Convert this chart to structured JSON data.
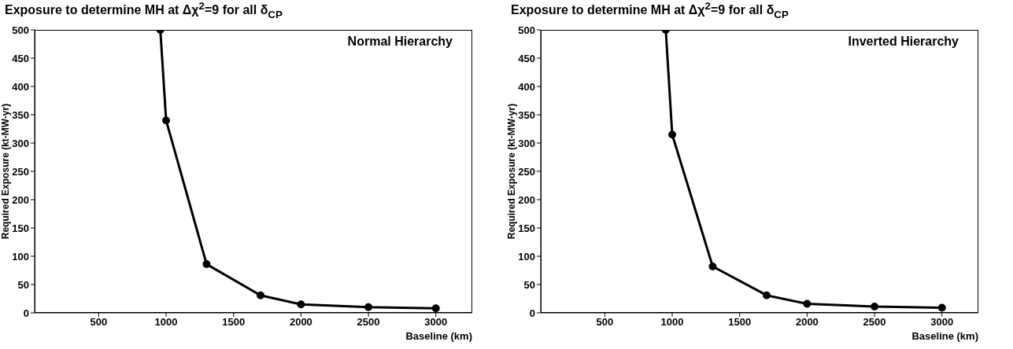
{
  "chart_data": [
    {
      "type": "line",
      "title": "Exposure to determine MH at Δχ$^{2}$=9 for all δ$_{CP}$",
      "xlabel": "Baseline (km)",
      "ylabel": "Required Exposure (kt-MW-yr)",
      "annotations": [
        "Normal Hierarchy"
      ],
      "x": [
        957,
        1000,
        1300,
        1700,
        2000,
        2500,
        3000
      ],
      "series": [
        {
          "color": "#000000",
          "values": [
            500,
            340,
            86,
            31,
            15,
            10,
            8
          ]
        }
      ],
      "xlim": [
        25,
        3270
      ],
      "xticks": [
        500,
        1000,
        1500,
        2000,
        2500,
        3000
      ],
      "ylim": [
        0,
        500
      ],
      "yticks": [
        0,
        50,
        100,
        150,
        200,
        250,
        300,
        350,
        400,
        450,
        500
      ],
      "grid": false,
      "legend": false,
      "marker": "circle",
      "line_style": "solid"
    },
    {
      "type": "line",
      "title": "Exposure to determine MH at Δχ$^{2}$=9 for all δ$_{CP}$",
      "xlabel": "Baseline (km)",
      "ylabel": "Required Exposure (kt-MW-yr)",
      "annotations": [
        "Inverted Hierarchy"
      ],
      "x": [
        952,
        1000,
        1300,
        1700,
        2000,
        2500,
        3000
      ],
      "series": [
        {
          "color": "#000000",
          "values": [
            500,
            315,
            82,
            31,
            16,
            11,
            9
          ]
        }
      ],
      "xlim": [
        25,
        3270
      ],
      "xticks": [
        500,
        1000,
        1500,
        2000,
        2500,
        3000
      ],
      "ylim": [
        0,
        500
      ],
      "yticks": [
        0,
        50,
        100,
        150,
        200,
        250,
        300,
        350,
        400,
        450,
        500
      ],
      "grid": false,
      "legend": false,
      "marker": "circle",
      "line_style": "solid"
    }
  ]
}
